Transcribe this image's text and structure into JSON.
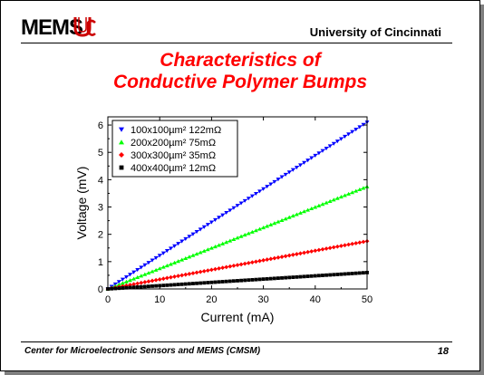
{
  "header": {
    "logo_text": "MEMS",
    "university": "University of Cincinnati"
  },
  "title": {
    "line1": "Characteristics of",
    "line2": "Conductive Polymer Bumps"
  },
  "footer": {
    "text": "Center for Microelectronic Sensors and MEMS (CMSM)",
    "page": "18"
  },
  "colors": {
    "title": "#ff0000",
    "series": [
      "#0000ff",
      "#00ff00",
      "#ff0000",
      "#000000"
    ]
  },
  "chart_data": {
    "type": "scatter",
    "title": "",
    "xlabel": "Current (mA)",
    "ylabel": "Voltage (mV)",
    "xlim": [
      0,
      50
    ],
    "ylim": [
      0,
      6.3
    ],
    "xticks": [
      0,
      10,
      20,
      30,
      40,
      50
    ],
    "yticks": [
      0,
      1,
      2,
      3,
      4,
      5,
      6
    ],
    "grid": false,
    "legend_position": "top-left",
    "x": [
      0,
      50
    ],
    "series": [
      {
        "name": "100x100µm²  122mΩ",
        "marker": "triangle-down",
        "color": "#0000ff",
        "values": [
          0,
          6.1
        ]
      },
      {
        "name": "200x200µm²    75mΩ",
        "marker": "triangle-up",
        "color": "#00ff00",
        "values": [
          0,
          3.75
        ]
      },
      {
        "name": "300x300µm²    35mΩ",
        "marker": "diamond",
        "color": "#ff0000",
        "values": [
          0,
          1.75
        ]
      },
      {
        "name": "400x400µm²    12mΩ",
        "marker": "square",
        "color": "#000000",
        "values": [
          0,
          0.6
        ]
      }
    ]
  }
}
